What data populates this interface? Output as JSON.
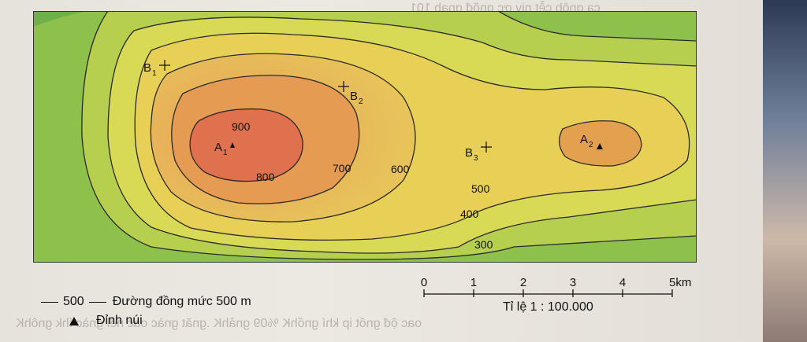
{
  "map": {
    "contours": {
      "c300": "300",
      "c400": "400",
      "c500": "500",
      "c600": "600",
      "c700": "700",
      "c800": "800",
      "c900": "900"
    },
    "peaks": {
      "a1": "A",
      "a1_sub": "1",
      "a2": "A",
      "a2_sub": "2"
    },
    "points": {
      "b1": "B",
      "b1_sub": "1",
      "b2": "B",
      "b2_sub": "2",
      "b3": "B",
      "b3_sub": "3"
    },
    "colors": {
      "low": "#79b84a",
      "mid_low": "#a9cb4e",
      "mid": "#e0dc57",
      "mid_high": "#e7b94e",
      "high": "#e18a4a",
      "peak": "#e0684e"
    }
  },
  "legend": {
    "contour_value": "500",
    "contour_text": "Đường đồng mức 500 m",
    "peak_text": "Đỉnh núi"
  },
  "scale": {
    "ticks": [
      "0",
      "1",
      "2",
      "3",
      "4",
      "5km"
    ],
    "ratio": "Tỉ lệ 1 : 100.000"
  }
}
